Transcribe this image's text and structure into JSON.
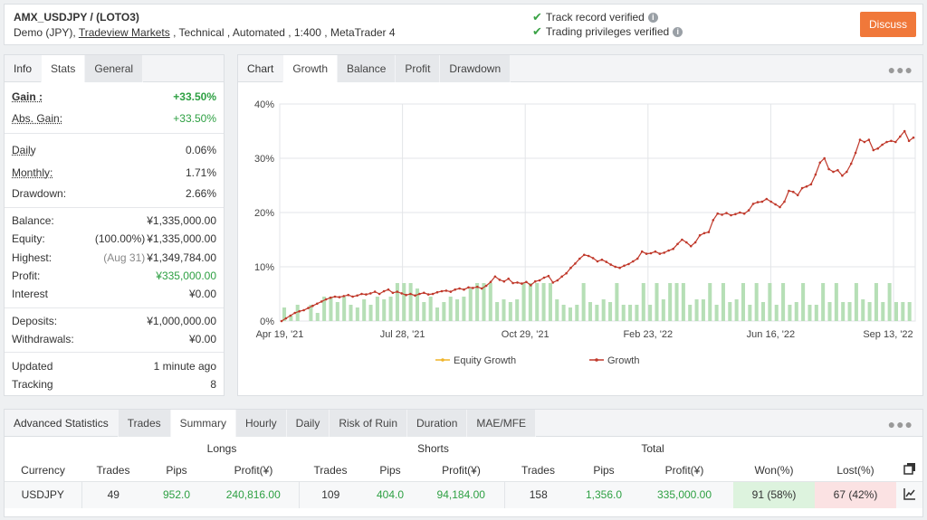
{
  "header": {
    "title": "AMX_USDJPY / (LOTO3)",
    "sub_prefix": "Demo (JPY),",
    "broker": "Tradeview Markets",
    "sub_suffix": ", Technical , Automated , 1:400 , MetaTrader 4",
    "verified_1": "Track record verified",
    "verified_2": "Trading privileges verified",
    "discuss_label": "Discuss"
  },
  "left_tabs": [
    "Info",
    "Stats",
    "General"
  ],
  "stats": {
    "gain_label": "Gain :",
    "gain_value": "+33.50%",
    "abs_gain_label": "Abs. Gain:",
    "abs_gain_value": "+33.50%",
    "daily_label": "Daily",
    "daily_value": "0.06%",
    "monthly_label": "Monthly:",
    "monthly_value": "1.71%",
    "drawdown_label": "Drawdown:",
    "drawdown_value": "2.66%",
    "balance_label": "Balance:",
    "balance_value": "¥1,335,000.00",
    "equity_label": "Equity:",
    "equity_note": "(100.00%)",
    "equity_value": "¥1,335,000.00",
    "highest_label": "Highest:",
    "highest_note": "(Aug 31)",
    "highest_value": "¥1,349,784.00",
    "profit_label": "Profit:",
    "profit_value": "¥335,000.00",
    "interest_label": "Interest",
    "interest_value": "¥0.00",
    "deposits_label": "Deposits:",
    "deposits_value": "¥1,000,000.00",
    "withdrawals_label": "Withdrawals:",
    "withdrawals_value": "¥0.00",
    "updated_label": "Updated",
    "updated_value": "1 minute ago",
    "tracking_label": "Tracking",
    "tracking_value": "8"
  },
  "chart_tabs": [
    "Chart",
    "Growth",
    "Balance",
    "Profit",
    "Drawdown"
  ],
  "chart_data": {
    "type": "line",
    "y_ticks": [
      "40%",
      "30%",
      "20%",
      "10%",
      "0%"
    ],
    "ylim": [
      0,
      40
    ],
    "x_ticks": [
      "Apr 19, '21",
      "Jul 28, '21",
      "Oct 29, '21",
      "Feb 23, '22",
      "Jun 16, '22",
      "Sep 13, '22"
    ],
    "legend": [
      "Equity Growth",
      "Growth"
    ],
    "colors": {
      "growth": "#c0392b",
      "equity": "#f0b429",
      "bars": "#b6dfb6"
    },
    "growth": [
      0,
      0.5,
      1,
      1.5,
      1.8,
      2,
      2.4,
      2.8,
      3.2,
      3.6,
      4,
      4.3,
      4.5,
      4.4,
      4.6,
      4.8,
      4.5,
      4.7,
      5,
      4.9,
      5.1,
      5.4,
      5,
      5.5,
      5.8,
      5.2,
      5.4,
      5.1,
      4.8,
      5,
      4.7,
      5,
      5.2,
      4.9,
      5,
      5.3,
      5.5,
      5.6,
      5.4,
      5.8,
      6,
      5.8,
      6.2,
      6.1,
      6.3,
      6,
      6.5,
      7.2,
      8.2,
      7.6,
      7.3,
      7.8,
      7,
      7.1,
      6.9,
      7.2,
      6.6,
      7.3,
      7.5,
      8,
      8.3,
      7.1,
      7.5,
      8.2,
      8.8,
      9.8,
      10.6,
      11.5,
      12.2,
      12,
      11.6,
      11,
      11.3,
      10.9,
      10.4,
      10,
      9.8,
      10.2,
      10.5,
      11,
      11.5,
      12.8,
      12.4,
      12.5,
      12.8,
      12.4,
      12.6,
      13,
      13.3,
      14.2,
      15,
      14.5,
      13.8,
      14.5,
      15.8,
      16.2,
      16.4,
      18.6,
      19.8,
      19.6,
      19.9,
      19.5,
      19.7,
      20,
      19.8,
      20.4,
      21.6,
      21.9,
      22,
      22.5,
      22,
      21.5,
      21,
      22,
      24,
      23.8,
      23.2,
      24.5,
      24.8,
      25.2,
      27,
      29.2,
      30,
      28,
      27.5,
      27.8,
      26.8,
      27.5,
      29,
      31,
      33.4,
      33,
      33.4,
      31.5,
      31.8,
      32.5,
      33,
      33.2,
      33,
      34,
      35,
      33.2,
      33.8
    ],
    "bars": [
      2.5,
      1,
      3,
      0,
      3,
      1.5,
      4.5,
      4.5,
      3.5,
      4.5,
      3,
      2.5,
      4,
      3,
      4.5,
      4,
      4.5,
      7,
      7,
      7,
      6,
      3.5,
      4.5,
      2.5,
      3.5,
      4.5,
      4,
      4.5,
      6,
      7,
      7,
      7,
      3.5,
      4,
      3.5,
      4,
      7,
      7,
      7,
      7,
      7,
      4,
      3,
      2.5,
      3,
      7,
      3.5,
      3,
      4,
      3.5,
      7,
      3,
      3,
      3,
      7,
      3,
      7,
      4,
      7,
      7,
      7,
      3,
      4,
      4,
      7,
      3,
      7,
      3.5,
      4,
      7,
      3,
      7,
      3.5,
      7,
      3,
      7,
      3,
      3.5,
      7,
      3,
      3,
      7,
      3.5,
      7,
      3.5,
      3.5,
      7,
      4,
      3.5,
      7,
      3.5,
      7,
      3.5,
      3.5,
      3.5
    ]
  },
  "adv": {
    "tabs": [
      "Advanced Statistics",
      "Trades",
      "Summary",
      "Hourly",
      "Daily",
      "Risk of Ruin",
      "Duration",
      "MAE/MFE"
    ],
    "groups": {
      "longs": "Longs",
      "shorts": "Shorts",
      "total": "Total"
    },
    "headers": [
      "Currency",
      "Trades",
      "Pips",
      "Profit(¥)",
      "Trades",
      "Pips",
      "Profit(¥)",
      "Trades",
      "Pips",
      "Profit(¥)",
      "Won(%)",
      "Lost(%)"
    ],
    "row": [
      "USDJPY",
      "49",
      "952.0",
      "240,816.00",
      "109",
      "404.0",
      "94,184.00",
      "158",
      "1,356.0",
      "335,000.00",
      "91 (58%)",
      "67 (42%)"
    ]
  }
}
